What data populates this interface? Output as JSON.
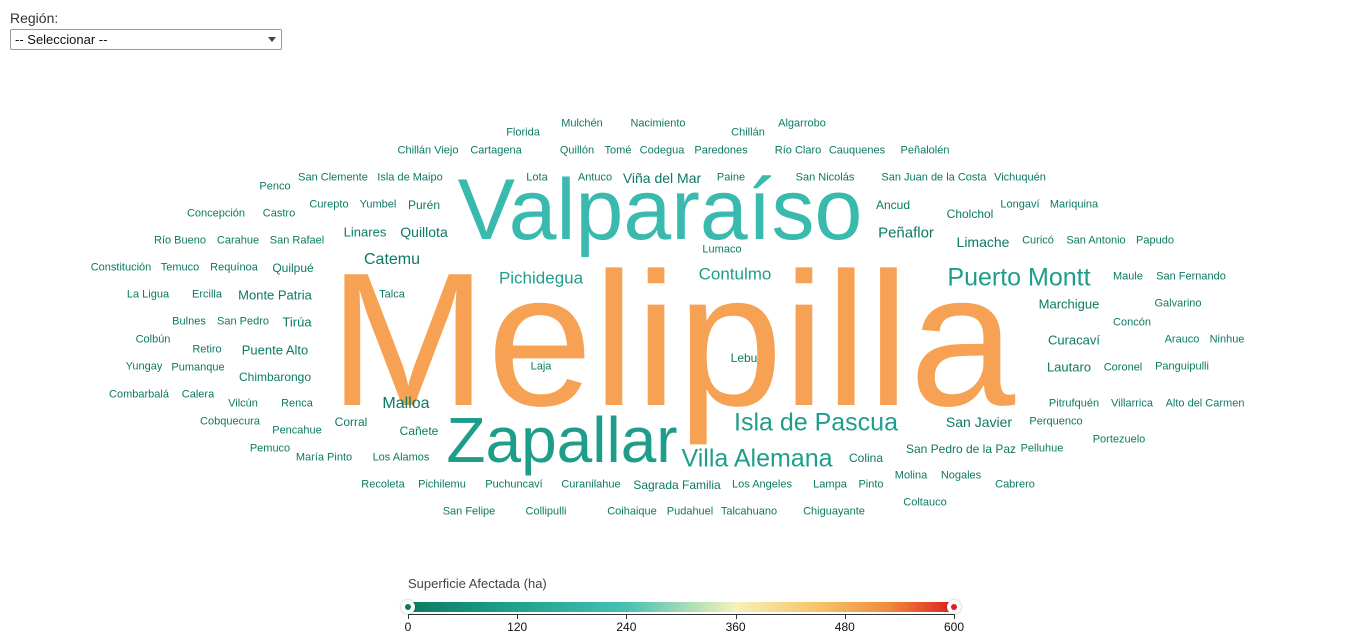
{
  "filter": {
    "label": "Región:",
    "selected": "-- Seleccionar --"
  },
  "colors": {
    "dark_green": "#0b7a62",
    "mid_green": "#1e9e8a",
    "teal": "#3ab9ae",
    "orange": "#f6a153"
  },
  "wordcloud": [
    {
      "text": "Melipilla",
      "value": 560
    },
    {
      "text": "Valparaíso",
      "value": 250
    },
    {
      "text": "Zapallar",
      "value": 200
    },
    {
      "text": "Puerto Montt",
      "value": 60
    },
    {
      "text": "Isla de Pascua",
      "value": 60
    },
    {
      "text": "Villa Alemana",
      "value": 55
    },
    {
      "text": "Pichidegua",
      "value": 40
    },
    {
      "text": "Contulmo",
      "value": 40
    },
    {
      "text": "Catemu",
      "value": 35
    },
    {
      "text": "Malloa",
      "value": 35
    },
    {
      "text": "Viña del Mar",
      "value": 25
    },
    {
      "text": "Quillota",
      "value": 25
    },
    {
      "text": "Peñaflor",
      "value": 25
    },
    {
      "text": "Limache",
      "value": 25
    },
    {
      "text": "Florida",
      "value": 5
    },
    {
      "text": "Mulchén",
      "value": 5
    },
    {
      "text": "Nacimiento",
      "value": 5
    },
    {
      "text": "Algarrobo",
      "value": 5
    },
    {
      "text": "Chillán",
      "value": 5
    },
    {
      "text": "Chillán Viejo",
      "value": 5
    },
    {
      "text": "Cartagena",
      "value": 5
    },
    {
      "text": "Quillón",
      "value": 5
    },
    {
      "text": "Tomé",
      "value": 5
    },
    {
      "text": "Codegua",
      "value": 5
    },
    {
      "text": "Paredones",
      "value": 5
    },
    {
      "text": "Río Claro",
      "value": 5
    },
    {
      "text": "Cauquenes",
      "value": 5
    },
    {
      "text": "Peñalolén",
      "value": 5
    },
    {
      "text": "Penco",
      "value": 5
    },
    {
      "text": "San Clemente",
      "value": 5
    },
    {
      "text": "Isla de Maipo",
      "value": 5
    },
    {
      "text": "Lota",
      "value": 5
    },
    {
      "text": "Antuco",
      "value": 5
    },
    {
      "text": "Paine",
      "value": 5
    },
    {
      "text": "San Nicolás",
      "value": 5
    },
    {
      "text": "San Juan de la Costa",
      "value": 5
    },
    {
      "text": "Vichuquén",
      "value": 5
    },
    {
      "text": "Concepción",
      "value": 5
    },
    {
      "text": "Castro",
      "value": 5
    },
    {
      "text": "Curepto",
      "value": 5
    },
    {
      "text": "Yumbel",
      "value": 5
    },
    {
      "text": "Purén",
      "value": 5
    },
    {
      "text": "Ancud",
      "value": 5
    },
    {
      "text": "Cholchol",
      "value": 5
    },
    {
      "text": "Longaví",
      "value": 5
    },
    {
      "text": "Mariquina",
      "value": 5
    },
    {
      "text": "Río Bueno",
      "value": 5
    },
    {
      "text": "Carahue",
      "value": 5
    },
    {
      "text": "San Rafael",
      "value": 5
    },
    {
      "text": "Linares",
      "value": 5
    },
    {
      "text": "Lumaco",
      "value": 5
    },
    {
      "text": "Curicó",
      "value": 5
    },
    {
      "text": "San Antonio",
      "value": 5
    },
    {
      "text": "Papudo",
      "value": 5
    },
    {
      "text": "Constitución",
      "value": 5
    },
    {
      "text": "Temuco",
      "value": 5
    },
    {
      "text": "Requínoa",
      "value": 5
    },
    {
      "text": "Quilpué",
      "value": 5
    },
    {
      "text": "Maule",
      "value": 5
    },
    {
      "text": "San Fernando",
      "value": 5
    },
    {
      "text": "La Ligua",
      "value": 5
    },
    {
      "text": "Ercilla",
      "value": 5
    },
    {
      "text": "Monte Patria",
      "value": 5
    },
    {
      "text": "Talca",
      "value": 5
    },
    {
      "text": "Marchigue",
      "value": 5
    },
    {
      "text": "Galvarino",
      "value": 5
    },
    {
      "text": "Bulnes",
      "value": 5
    },
    {
      "text": "San Pedro",
      "value": 5
    },
    {
      "text": "Tirúa",
      "value": 5
    },
    {
      "text": "Concón",
      "value": 5
    },
    {
      "text": "Colbún",
      "value": 5
    },
    {
      "text": "Curacaví",
      "value": 5
    },
    {
      "text": "Arauco",
      "value": 5
    },
    {
      "text": "Ninhue",
      "value": 5
    },
    {
      "text": "Retiro",
      "value": 5
    },
    {
      "text": "Puente Alto",
      "value": 5
    },
    {
      "text": "Lebu",
      "value": 5
    },
    {
      "text": "Yungay",
      "value": 5
    },
    {
      "text": "Pumanque",
      "value": 5
    },
    {
      "text": "Laja",
      "value": 5
    },
    {
      "text": "Lautaro",
      "value": 5
    },
    {
      "text": "Coronel",
      "value": 5
    },
    {
      "text": "Panguipulli",
      "value": 5
    },
    {
      "text": "Chimbarongo",
      "value": 5
    },
    {
      "text": "Combarbalá",
      "value": 5
    },
    {
      "text": "Calera",
      "value": 5
    },
    {
      "text": "Vilcún",
      "value": 5
    },
    {
      "text": "Renca",
      "value": 5
    },
    {
      "text": "Pitrufquén",
      "value": 5
    },
    {
      "text": "Villarrica",
      "value": 5
    },
    {
      "text": "Alto del Carmen",
      "value": 5
    },
    {
      "text": "Cobquecura",
      "value": 5
    },
    {
      "text": "Corral",
      "value": 5
    },
    {
      "text": "San Javier",
      "value": 5
    },
    {
      "text": "Perquenco",
      "value": 5
    },
    {
      "text": "Pencahue",
      "value": 5
    },
    {
      "text": "Cañete",
      "value": 5
    },
    {
      "text": "Portezuelo",
      "value": 5
    },
    {
      "text": "Pemuco",
      "value": 5
    },
    {
      "text": "María Pinto",
      "value": 5
    },
    {
      "text": "Los Alamos",
      "value": 5
    },
    {
      "text": "San Pedro de la Paz",
      "value": 5
    },
    {
      "text": "Pelluhue",
      "value": 5
    },
    {
      "text": "Colina",
      "value": 5
    },
    {
      "text": "Molina",
      "value": 5
    },
    {
      "text": "Nogales",
      "value": 5
    },
    {
      "text": "Recoleta",
      "value": 5
    },
    {
      "text": "Pichilemu",
      "value": 5
    },
    {
      "text": "Puchuncaví",
      "value": 5
    },
    {
      "text": "Curanilahue",
      "value": 5
    },
    {
      "text": "Sagrada Familia",
      "value": 5
    },
    {
      "text": "Los Angeles",
      "value": 5
    },
    {
      "text": "Lampa",
      "value": 5
    },
    {
      "text": "Pinto",
      "value": 5
    },
    {
      "text": "Cabrero",
      "value": 5
    },
    {
      "text": "Coltauco",
      "value": 5
    },
    {
      "text": "San Felipe",
      "value": 5
    },
    {
      "text": "Collipulli",
      "value": 5
    },
    {
      "text": "Coihaique",
      "value": 5
    },
    {
      "text": "Pudahuel",
      "value": 5
    },
    {
      "text": "Talcahuano",
      "value": 5
    },
    {
      "text": "Chiguayante",
      "value": 5
    }
  ],
  "legend": {
    "title": "Superficie Afectada (ha)",
    "ticks": [
      "0",
      "120",
      "240",
      "360",
      "480",
      "600"
    ],
    "min": 0,
    "max": 600
  }
}
